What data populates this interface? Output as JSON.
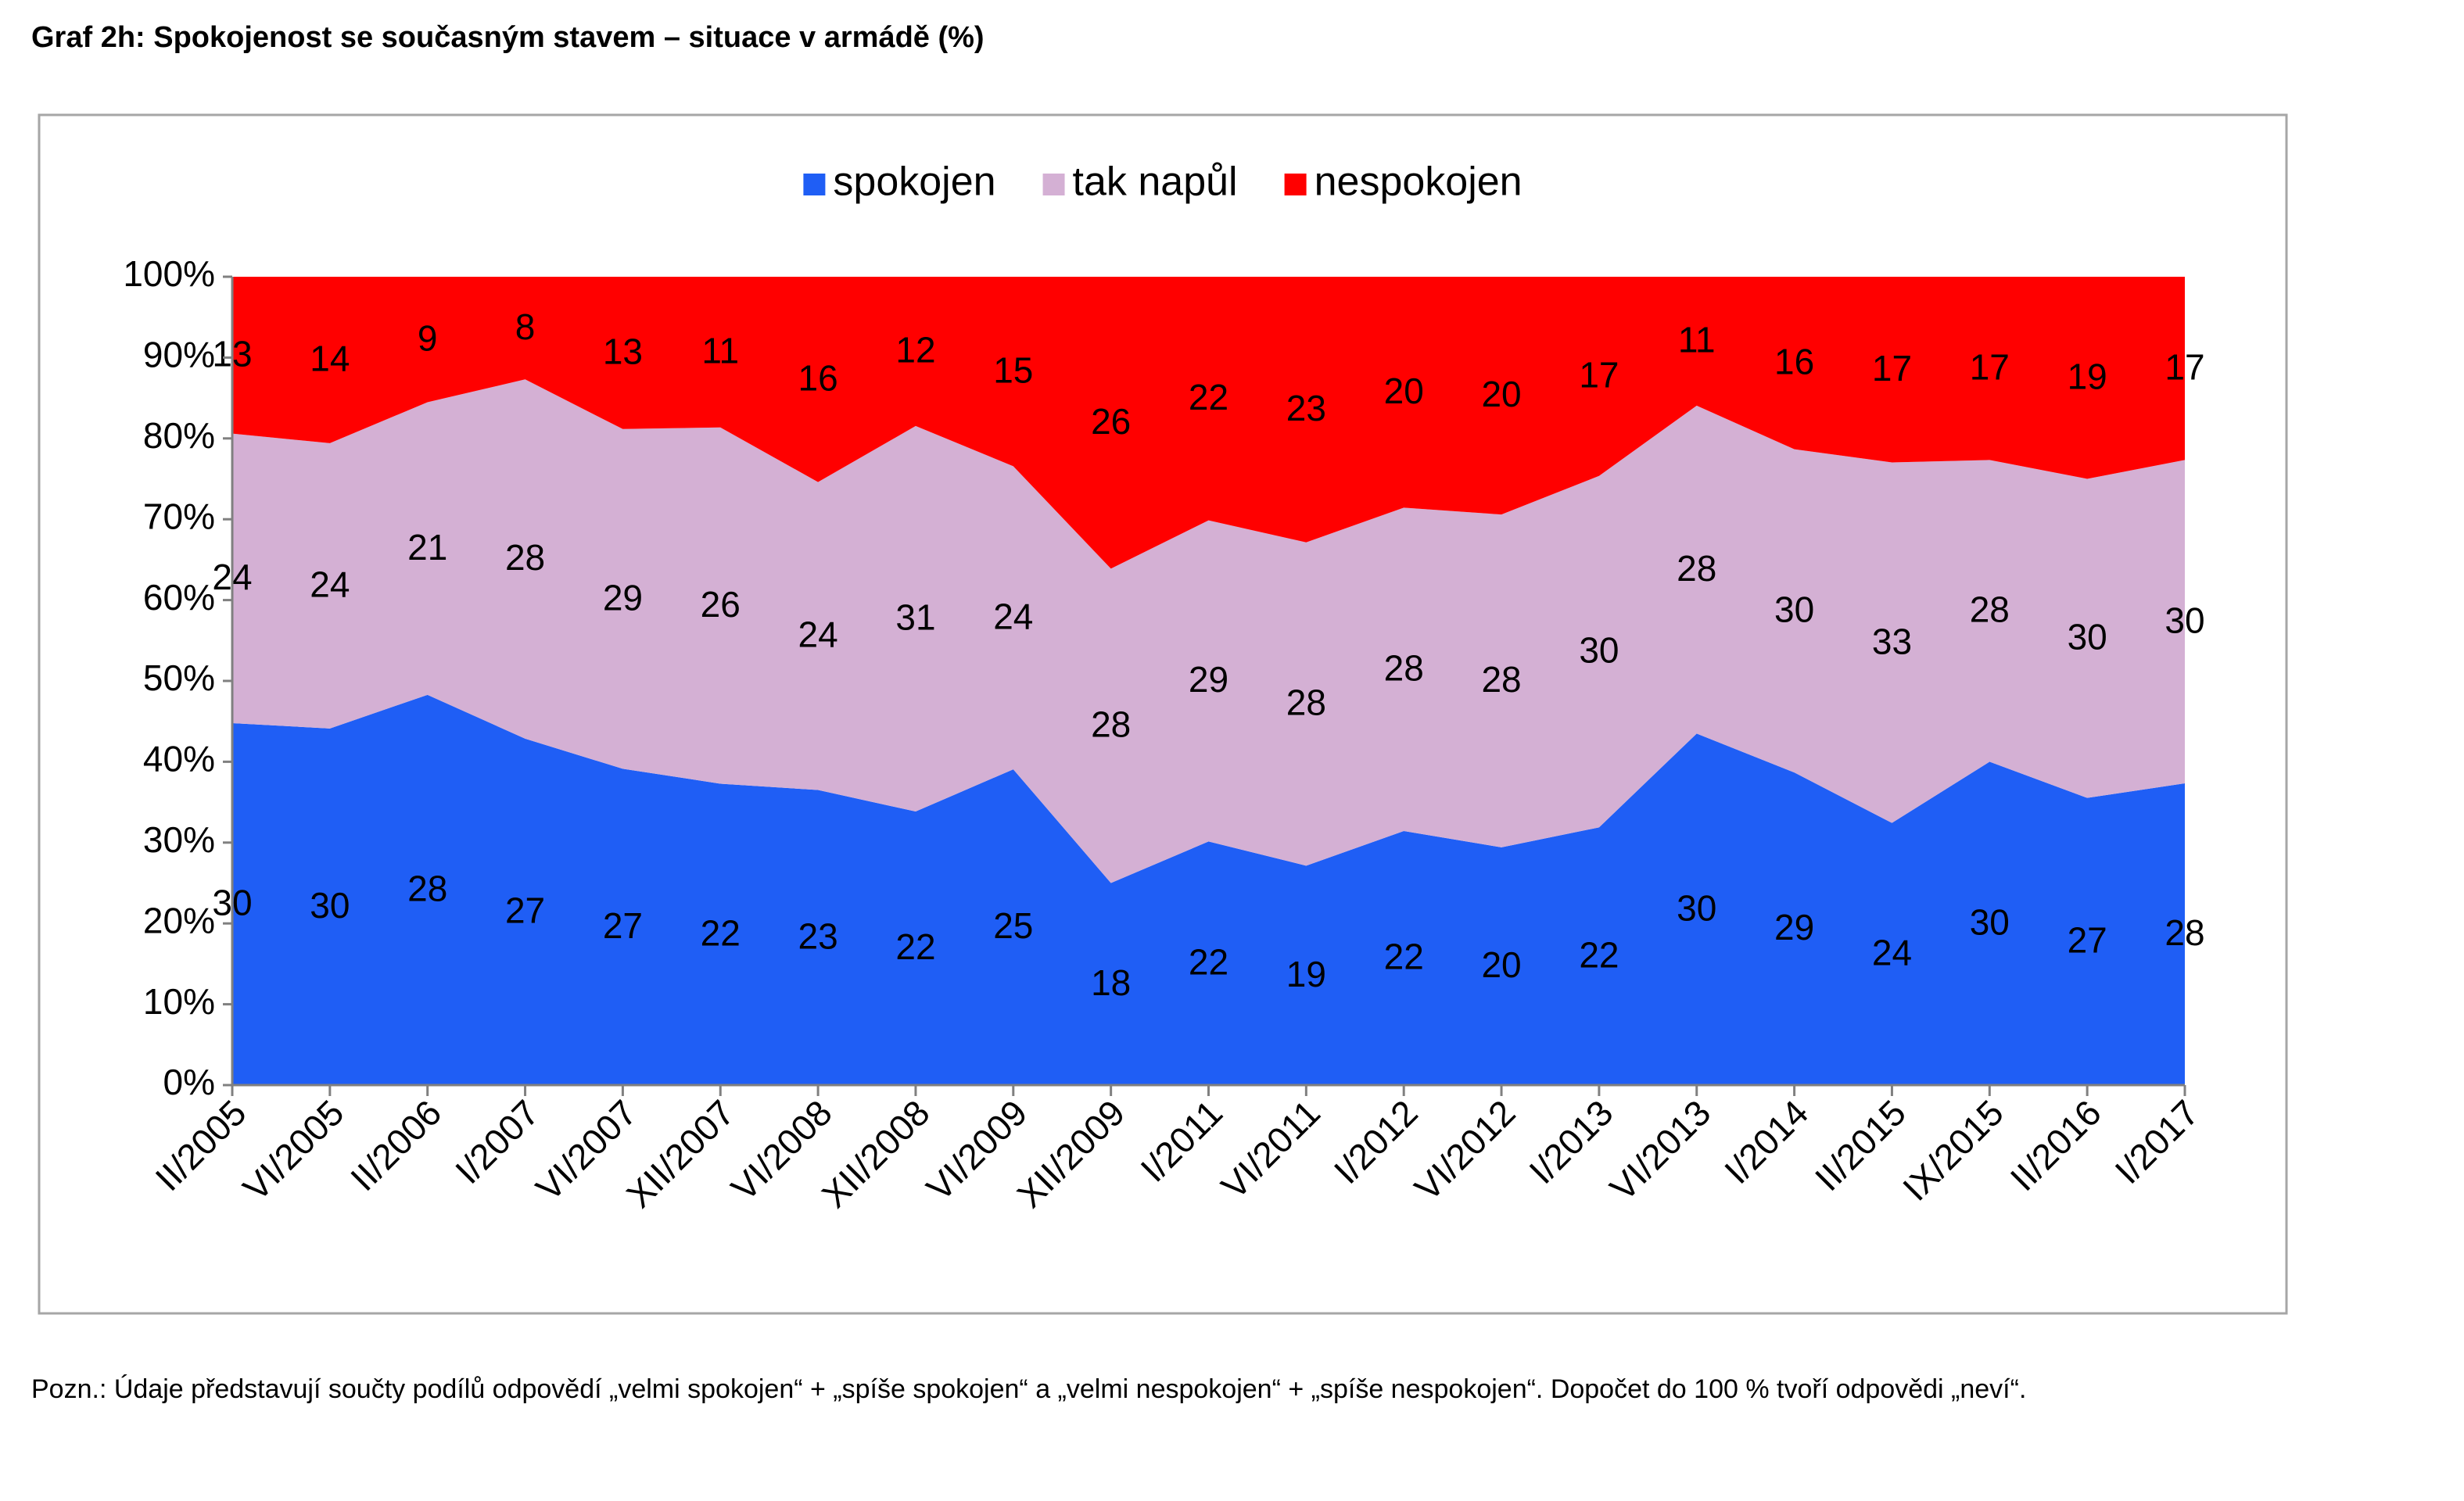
{
  "chart_data": {
    "type": "area",
    "stacking": "percent",
    "title": "Graf 2h: Spokojenost se současným stavem – situace v armádě (%)",
    "note": "Pozn.: Údaje představují součty podílů odpovědí „velmi spokojen“ + „spíše spokojen“ a „velmi nespokojen“ + „spíše nespokojen“. Dopočet do 100 % tvoří odpovědi „neví“.",
    "categories": [
      "II/2005",
      "VI/2005",
      "II/2006",
      "I/2007",
      "VI/2007",
      "XII/2007",
      "VI/2008",
      "XII/2008",
      "VI/2009",
      "XII/2009",
      "I/2011",
      "VI/2011",
      "I/2012",
      "VI/2012",
      "I/2013",
      "VI/2013",
      "I/2014",
      "II/2015",
      "IX/2015",
      "II/2016",
      "I/2017"
    ],
    "series": [
      {
        "name": "spokojen",
        "color": "#1f5ef5",
        "values": [
          30,
          30,
          28,
          27,
          27,
          22,
          23,
          22,
          25,
          18,
          22,
          19,
          22,
          20,
          22,
          30,
          29,
          24,
          30,
          27,
          28
        ]
      },
      {
        "name": "tak napůl",
        "color": "#d4b0d4",
        "values": [
          24,
          24,
          21,
          28,
          29,
          26,
          24,
          31,
          24,
          28,
          29,
          28,
          28,
          28,
          30,
          28,
          30,
          33,
          28,
          30,
          30
        ]
      },
      {
        "name": "nespokojen",
        "color": "#ff0000",
        "values": [
          13,
          14,
          9,
          8,
          13,
          11,
          16,
          12,
          15,
          26,
          22,
          23,
          20,
          20,
          17,
          11,
          16,
          17,
          17,
          19,
          17
        ]
      }
    ],
    "ylim": [
      0,
      100
    ],
    "yticks": [
      {
        "value": 0,
        "label": "0%"
      },
      {
        "value": 10,
        "label": "10%"
      },
      {
        "value": 20,
        "label": "20%"
      },
      {
        "value": 30,
        "label": "30%"
      },
      {
        "value": 40,
        "label": "40%"
      },
      {
        "value": 50,
        "label": "50%"
      },
      {
        "value": 60,
        "label": "60%"
      },
      {
        "value": 70,
        "label": "70%"
      },
      {
        "value": 80,
        "label": "80%"
      },
      {
        "value": 90,
        "label": "90%"
      },
      {
        "value": 100,
        "label": "100%"
      }
    ],
    "legend": "top"
  }
}
